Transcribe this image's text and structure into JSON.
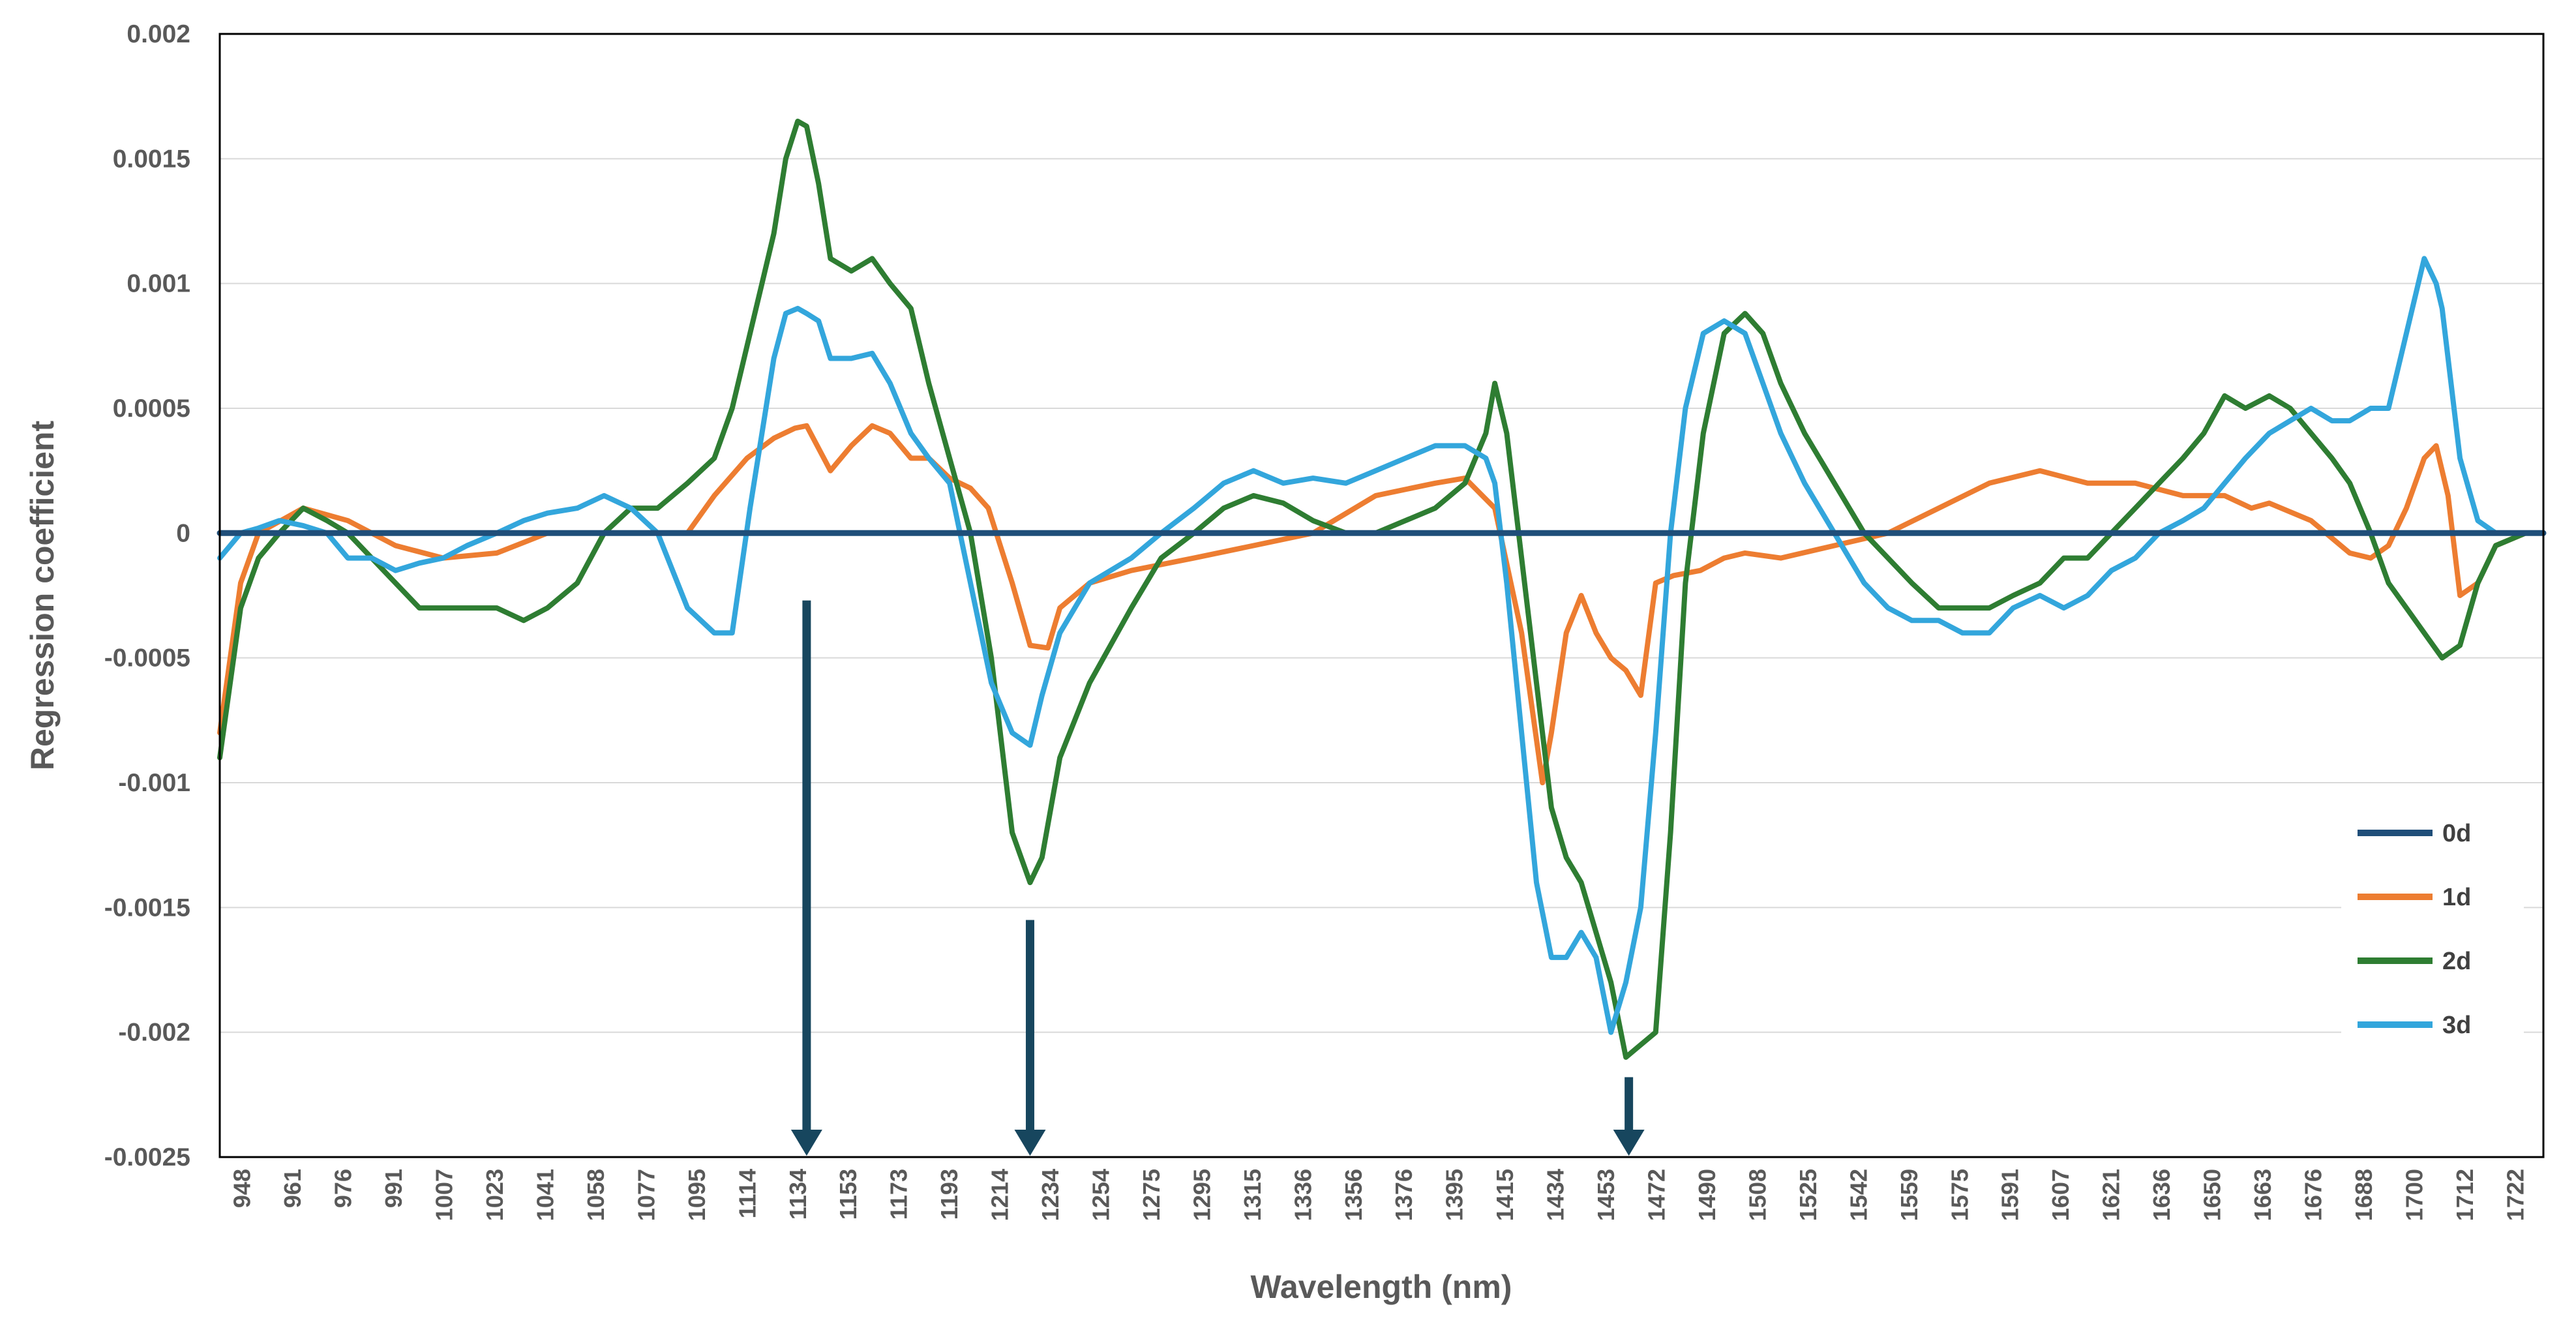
{
  "chart_data": {
    "type": "line",
    "title": "",
    "xlabel": "Wavelength (nm)",
    "ylabel": "Regression coefficient",
    "ylim": [
      -0.0025,
      0.002
    ],
    "yticks": [
      "0.002",
      "0.0015",
      "0.001",
      "0.0005",
      "0",
      "-0.0005",
      "-0.001",
      "-0.0015",
      "-0.002",
      "-0.0025"
    ],
    "xlim": [
      948,
      1728
    ],
    "xticks": [
      "948",
      "961",
      "976",
      "991",
      "1007",
      "1023",
      "1041",
      "1058",
      "1077",
      "1095",
      "1114",
      "1134",
      "1153",
      "1173",
      "1193",
      "1214",
      "1234",
      "1254",
      "1275",
      "1295",
      "1315",
      "1336",
      "1356",
      "1376",
      "1395",
      "1415",
      "1434",
      "1453",
      "1472",
      "1490",
      "1508",
      "1525",
      "1542",
      "1559",
      "1575",
      "1591",
      "1607",
      "1621",
      "1636",
      "1650",
      "1663",
      "1676",
      "1688",
      "1700",
      "1712",
      "1722"
    ],
    "grid": true,
    "legend_position": "bottom-right",
    "colors": {
      "0d": "#1f4e79",
      "1d": "#ed7d31",
      "2d": "#2e7d32",
      "3d": "#33a6dc",
      "arrow": "#17465e",
      "grid": "#d9d9d9",
      "axis": "#000000"
    },
    "annotations": [
      {
        "type": "arrow",
        "x": 1145,
        "y_from": -0.00027,
        "y_to": -0.0025
      },
      {
        "type": "arrow",
        "x": 1220,
        "y_from": -0.00155,
        "y_to": -0.0025
      },
      {
        "type": "arrow",
        "x": 1421,
        "y_from": -0.00218,
        "y_to": -0.0025
      }
    ],
    "series": [
      {
        "name": "0d",
        "x": [
          948,
          1728
        ],
        "y": [
          0,
          0
        ]
      },
      {
        "name": "1d",
        "x": [
          948,
          955,
          961,
          976,
          991,
          1007,
          1023,
          1041,
          1058,
          1077,
          1095,
          1105,
          1114,
          1125,
          1134,
          1141,
          1145,
          1153,
          1160,
          1167,
          1173,
          1180,
          1186,
          1193,
          1200,
          1206,
          1214,
          1220,
          1226,
          1230,
          1240,
          1254,
          1275,
          1295,
          1315,
          1336,
          1356,
          1366,
          1376,
          1385,
          1392,
          1395,
          1400,
          1405,
          1410,
          1415,
          1420,
          1425,
          1430,
          1436,
          1445,
          1453,
          1460,
          1472,
          1490,
          1508,
          1525,
          1542,
          1559,
          1575,
          1591,
          1607,
          1621,
          1630,
          1636,
          1650,
          1663,
          1670,
          1676,
          1682,
          1688,
          1692,
          1696,
          1700,
          1706,
          1712,
          1722,
          1728
        ],
        "y": [
          -0.0008,
          -0.0002,
          0.0,
          0.0001,
          5e-05,
          -5e-05,
          -0.0001,
          -8e-05,
          0.0,
          0.0,
          0.0,
          0.0,
          0.00015,
          0.0003,
          0.00038,
          0.00042,
          0.00043,
          0.00025,
          0.00035,
          0.00043,
          0.0004,
          0.0003,
          0.0003,
          0.00022,
          0.00018,
          0.0001,
          -0.0002,
          -0.00045,
          -0.00046,
          -0.0003,
          -0.0002,
          -0.00015,
          -0.0001,
          -5e-05,
          0.0,
          0.00015,
          0.0002,
          0.00022,
          0.0001,
          -0.0004,
          -0.001,
          -0.0008,
          -0.0004,
          -0.00025,
          -0.0004,
          -0.0005,
          -0.00055,
          -0.00065,
          -0.0002,
          -0.00017,
          -0.00015,
          -0.0001,
          -8e-05,
          -0.0001,
          -5e-05,
          0.0,
          0.0001,
          0.0002,
          0.00025,
          0.0002,
          0.0002,
          0.00015,
          0.00015,
          0.0001,
          0.00012,
          5e-05,
          -8e-05,
          -0.0001,
          -5e-05,
          0.0001,
          0.0003,
          0.00035,
          0.00015,
          -0.00025,
          -0.0002,
          -5e-05,
          0.0,
          0.0
        ]
      },
      {
        "name": "2d",
        "x": [
          948,
          955,
          961,
          968,
          976,
          984,
          991,
          999,
          1007,
          1015,
          1023,
          1031,
          1041,
          1050,
          1058,
          1068,
          1077,
          1086,
          1095,
          1105,
          1114,
          1120,
          1126,
          1130,
          1134,
          1138,
          1142,
          1145,
          1149,
          1153,
          1160,
          1167,
          1173,
          1180,
          1186,
          1193,
          1200,
          1207,
          1214,
          1220,
          1224,
          1230,
          1240,
          1254,
          1264,
          1275,
          1285,
          1295,
          1305,
          1315,
          1326,
          1336,
          1346,
          1356,
          1366,
          1373,
          1376,
          1380,
          1385,
          1390,
          1395,
          1400,
          1405,
          1410,
          1415,
          1420,
          1425,
          1430,
          1435,
          1440,
          1446,
          1453,
          1460,
          1466,
          1472,
          1480,
          1490,
          1500,
          1508,
          1516,
          1525,
          1533,
          1542,
          1550,
          1559,
          1567,
          1575,
          1583,
          1591,
          1599,
          1607,
          1614,
          1621,
          1628,
          1636,
          1643,
          1650,
          1657,
          1663,
          1670,
          1676,
          1682,
          1688,
          1694,
          1700,
          1706,
          1712,
          1722,
          1728
        ],
        "y": [
          -0.0009,
          -0.0003,
          -0.0001,
          0.0,
          0.0001,
          5e-05,
          0.0,
          -0.0001,
          -0.0002,
          -0.0003,
          -0.0003,
          -0.0003,
          -0.0003,
          -0.00035,
          -0.0003,
          -0.0002,
          0.0,
          0.0001,
          0.0001,
          0.0002,
          0.0003,
          0.0005,
          0.0008,
          0.001,
          0.0012,
          0.0015,
          0.00165,
          0.00163,
          0.0014,
          0.0011,
          0.00105,
          0.0011,
          0.001,
          0.0009,
          0.0006,
          0.0003,
          0.0,
          -0.0005,
          -0.0012,
          -0.0014,
          -0.0013,
          -0.0009,
          -0.0006,
          -0.0003,
          -0.0001,
          0.0,
          0.0001,
          0.00015,
          0.00012,
          5e-05,
          0.0,
          0.0,
          5e-05,
          0.0001,
          0.0002,
          0.0004,
          0.0006,
          0.0004,
          -0.0001,
          -0.0006,
          -0.0011,
          -0.0013,
          -0.0014,
          -0.0016,
          -0.0018,
          -0.0021,
          -0.00205,
          -0.002,
          -0.0012,
          -0.0002,
          0.0004,
          0.0008,
          0.00088,
          0.0008,
          0.0006,
          0.0004,
          0.0002,
          0.0,
          -0.0001,
          -0.0002,
          -0.0003,
          -0.0003,
          -0.0003,
          -0.00025,
          -0.0002,
          -0.0001,
          -0.0001,
          0.0,
          0.0001,
          0.0002,
          0.0003,
          0.0004,
          0.00055,
          0.0005,
          0.00055,
          0.0005,
          0.0004,
          0.0003,
          0.0002,
          0.0,
          -0.0002,
          -0.0003,
          -0.0004,
          -0.0005,
          -0.00045,
          -0.0002,
          -5e-05,
          0.0,
          0.0
        ]
      },
      {
        "name": "3d",
        "x": [
          948,
          955,
          961,
          968,
          976,
          984,
          991,
          999,
          1007,
          1015,
          1023,
          1031,
          1041,
          1050,
          1058,
          1068,
          1077,
          1086,
          1095,
          1105,
          1114,
          1120,
          1126,
          1130,
          1134,
          1138,
          1142,
          1145,
          1149,
          1153,
          1160,
          1167,
          1173,
          1180,
          1186,
          1193,
          1200,
          1207,
          1214,
          1220,
          1224,
          1230,
          1240,
          1254,
          1264,
          1275,
          1285,
          1295,
          1305,
          1315,
          1326,
          1336,
          1346,
          1356,
          1366,
          1373,
          1376,
          1380,
          1385,
          1390,
          1395,
          1400,
          1405,
          1410,
          1415,
          1420,
          1425,
          1430,
          1435,
          1440,
          1446,
          1453,
          1460,
          1466,
          1472,
          1480,
          1490,
          1500,
          1508,
          1516,
          1525,
          1533,
          1542,
          1550,
          1559,
          1567,
          1575,
          1583,
          1591,
          1599,
          1607,
          1614,
          1621,
          1628,
          1636,
          1643,
          1650,
          1657,
          1663,
          1670,
          1676,
          1682,
          1688,
          1692,
          1694,
          1700,
          1706,
          1712,
          1722,
          1728
        ],
        "y": [
          -0.0001,
          0.0,
          2e-05,
          5e-05,
          3e-05,
          0.0,
          -0.0001,
          -0.0001,
          -0.00015,
          -0.00012,
          -0.0001,
          -5e-05,
          0.0,
          5e-05,
          8e-05,
          0.0001,
          0.00015,
          0.0001,
          0.0,
          -0.0003,
          -0.0004,
          -0.0004,
          0.0001,
          0.0004,
          0.0007,
          0.00088,
          0.0009,
          0.00088,
          0.00085,
          0.0007,
          0.0007,
          0.00072,
          0.0006,
          0.0004,
          0.0003,
          0.0002,
          -0.0002,
          -0.0006,
          -0.0008,
          -0.00085,
          -0.00065,
          -0.0004,
          -0.0002,
          -0.0001,
          0.0,
          0.0001,
          0.0002,
          0.00025,
          0.0002,
          0.00022,
          0.0002,
          0.00025,
          0.0003,
          0.00035,
          0.00035,
          0.0003,
          0.0002,
          -0.0002,
          -0.0008,
          -0.0014,
          -0.0017,
          -0.0017,
          -0.0016,
          -0.0017,
          -0.002,
          -0.0018,
          -0.0015,
          -0.0008,
          0.0,
          0.0005,
          0.0008,
          0.00085,
          0.0008,
          0.0006,
          0.0004,
          0.0002,
          0.0,
          -0.0002,
          -0.0003,
          -0.00035,
          -0.00035,
          -0.0004,
          -0.0004,
          -0.0003,
          -0.00025,
          -0.0003,
          -0.00025,
          -0.00015,
          -0.0001,
          0.0,
          5e-05,
          0.0001,
          0.0002,
          0.0003,
          0.0004,
          0.00045,
          0.0005,
          0.00045,
          0.00045,
          0.0005,
          0.0005,
          0.0008,
          0.0011,
          0.001,
          0.0009,
          0.0003,
          5e-05,
          0.0,
          0.0,
          0.0
        ]
      }
    ]
  }
}
